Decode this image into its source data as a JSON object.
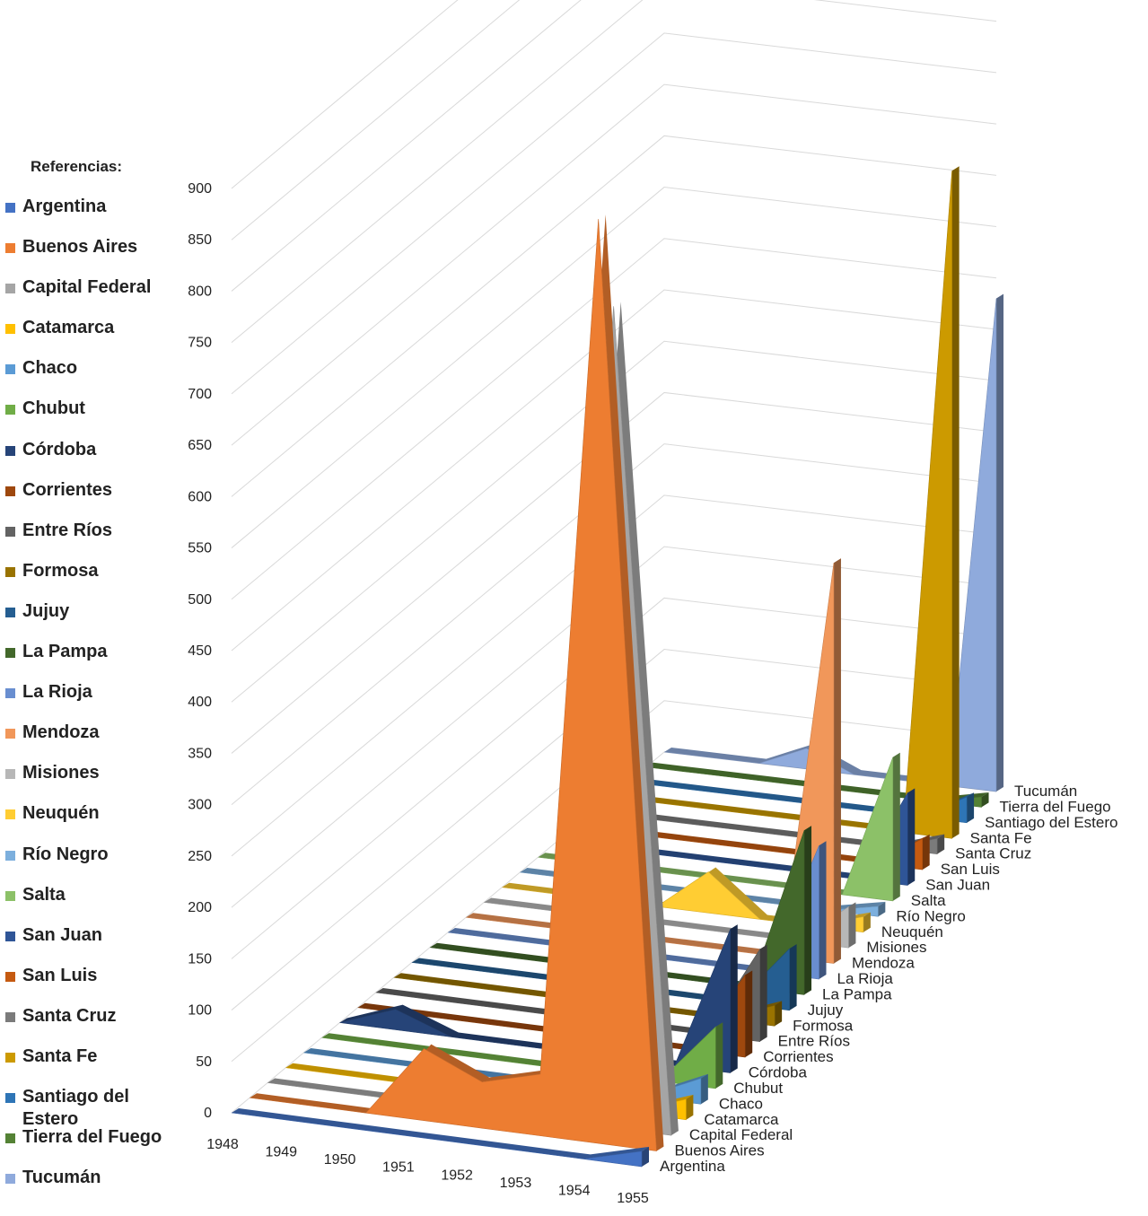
{
  "chart_data": {
    "type": "area",
    "subtype": "3d-area",
    "title": "",
    "legend_title": "Referencias:",
    "x": [
      "1948",
      "1949",
      "1950",
      "1951",
      "1952",
      "1953",
      "1954",
      "1955"
    ],
    "y_ticks": [
      "0",
      "50",
      "100",
      "150",
      "200",
      "250",
      "300",
      "350",
      "400",
      "450",
      "500",
      "550",
      "600",
      "650",
      "700",
      "750",
      "800",
      "850",
      "900"
    ],
    "ylim": [
      0,
      900
    ],
    "series": [
      {
        "name": "Argentina",
        "color": "#4472C4",
        "values": [
          0,
          0,
          0,
          0,
          0,
          0,
          0,
          15
        ]
      },
      {
        "name": "Buenos Aires",
        "color": "#ED7D31",
        "values": [
          0,
          0,
          0,
          70,
          45,
          60,
          900,
          0
        ]
      },
      {
        "name": "Capital Federal",
        "color": "#A5A5A5",
        "values": [
          0,
          0,
          0,
          0,
          0,
          0,
          800,
          0
        ]
      },
      {
        "name": "Catamarca",
        "color": "#FFC000",
        "values": [
          0,
          0,
          0,
          0,
          0,
          0,
          0,
          20
        ]
      },
      {
        "name": "Chaco",
        "color": "#5B9BD5",
        "values": [
          0,
          0,
          0,
          0,
          0,
          0,
          0,
          25
        ]
      },
      {
        "name": "Chubut",
        "color": "#70AD47",
        "values": [
          0,
          0,
          0,
          0,
          0,
          30,
          0,
          60
        ]
      },
      {
        "name": "Córdoba",
        "color": "#264478",
        "values": [
          0,
          20,
          0,
          0,
          0,
          0,
          0,
          140
        ]
      },
      {
        "name": "Corrientes",
        "color": "#9E480E",
        "values": [
          0,
          0,
          0,
          0,
          0,
          0,
          0,
          80
        ]
      },
      {
        "name": "Entre Ríos",
        "color": "#636363",
        "values": [
          0,
          0,
          0,
          0,
          0,
          0,
          0,
          90
        ]
      },
      {
        "name": "Formosa",
        "color": "#997300",
        "values": [
          0,
          0,
          0,
          0,
          0,
          0,
          0,
          20
        ]
      },
      {
        "name": "Jujuy",
        "color": "#255E91",
        "values": [
          0,
          0,
          0,
          0,
          0,
          0,
          0,
          60
        ]
      },
      {
        "name": "La Pampa",
        "color": "#43682B",
        "values": [
          0,
          0,
          0,
          0,
          0,
          0,
          0,
          160
        ]
      },
      {
        "name": "La Rioja",
        "color": "#698ED0",
        "values": [
          0,
          0,
          0,
          0,
          0,
          0,
          0,
          130
        ]
      },
      {
        "name": "Mendoza",
        "color": "#F1975A",
        "values": [
          0,
          0,
          0,
          0,
          0,
          0,
          0,
          390
        ]
      },
      {
        "name": "Misiones",
        "color": "#B7B7B7",
        "values": [
          0,
          0,
          0,
          0,
          0,
          0,
          0,
          40
        ]
      },
      {
        "name": "Neuquén",
        "color": "#FFCD33",
        "values": [
          0,
          0,
          0,
          0,
          40,
          0,
          0,
          15
        ]
      },
      {
        "name": "Río Negro",
        "color": "#7CAFDD",
        "values": [
          0,
          0,
          0,
          0,
          0,
          0,
          0,
          10
        ]
      },
      {
        "name": "Salta",
        "color": "#8CC168",
        "values": [
          0,
          0,
          0,
          0,
          0,
          0,
          0,
          140
        ]
      },
      {
        "name": "San Juan",
        "color": "#2F5597",
        "values": [
          0,
          0,
          0,
          0,
          0,
          0,
          0,
          90
        ]
      },
      {
        "name": "San Luis",
        "color": "#C55A11",
        "values": [
          0,
          0,
          0,
          0,
          0,
          0,
          0,
          30
        ]
      },
      {
        "name": "Santa Cruz",
        "color": "#7B7B7B",
        "values": [
          0,
          0,
          0,
          0,
          0,
          0,
          0,
          15
        ]
      },
      {
        "name": "Santa Fe",
        "color": "#CC9A00",
        "values": [
          0,
          0,
          0,
          0,
          0,
          0,
          0,
          650
        ]
      },
      {
        "name": "Santiago del Estero",
        "color": "#2E75B6",
        "values": [
          0,
          0,
          0,
          0,
          0,
          0,
          0,
          25
        ]
      },
      {
        "name": "Tierra del Fuego",
        "color": "#548235",
        "values": [
          0,
          0,
          0,
          0,
          0,
          0,
          0,
          10
        ]
      },
      {
        "name": "Tucumán",
        "color": "#8FAADC",
        "values": [
          0,
          0,
          0,
          20,
          0,
          0,
          0,
          480
        ]
      }
    ]
  }
}
